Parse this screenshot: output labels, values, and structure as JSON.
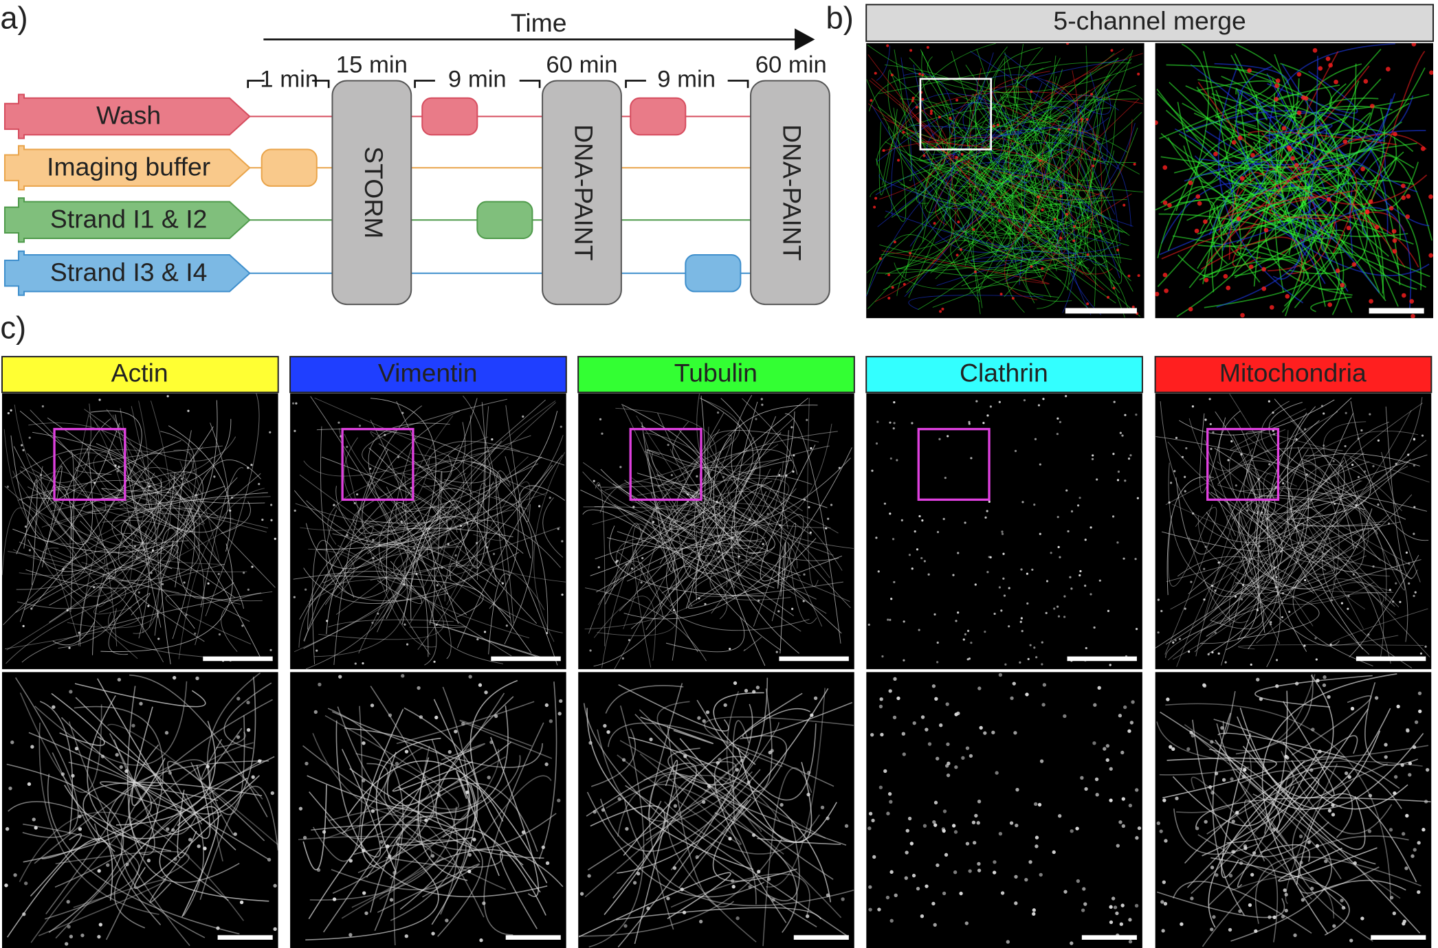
{
  "panel_a": {
    "label": "a)",
    "time_label": "Time",
    "channels": [
      {
        "name": "Wash",
        "color": "#e97b88",
        "edge": "#d64c5e"
      },
      {
        "name": "Imaging buffer",
        "color": "#f9c98b",
        "edge": "#e9a44a"
      },
      {
        "name": "Strand I1 & I2",
        "color": "#80bf7c",
        "edge": "#4e9a4a"
      },
      {
        "name": "Strand I3 & I4",
        "color": "#7cb9e4",
        "edge": "#3f8fcc"
      }
    ],
    "durations": [
      "1 min",
      "15 min",
      "9 min",
      "60 min",
      "9 min",
      "60 min"
    ],
    "steps": [
      "STORM",
      "DNA-PAINT",
      "DNA-PAINT"
    ]
  },
  "panel_b": {
    "label": "b)",
    "title": "5-channel merge"
  },
  "panel_c": {
    "label": "c)",
    "channels": [
      {
        "name": "Actin",
        "color": "#ffff33"
      },
      {
        "name": "Vimentin",
        "color": "#1f3fff"
      },
      {
        "name": "Tubulin",
        "color": "#33ff33"
      },
      {
        "name": "Clathrin",
        "color": "#33ffff"
      },
      {
        "name": "Mitochondria",
        "color": "#ff1f1f"
      }
    ]
  }
}
